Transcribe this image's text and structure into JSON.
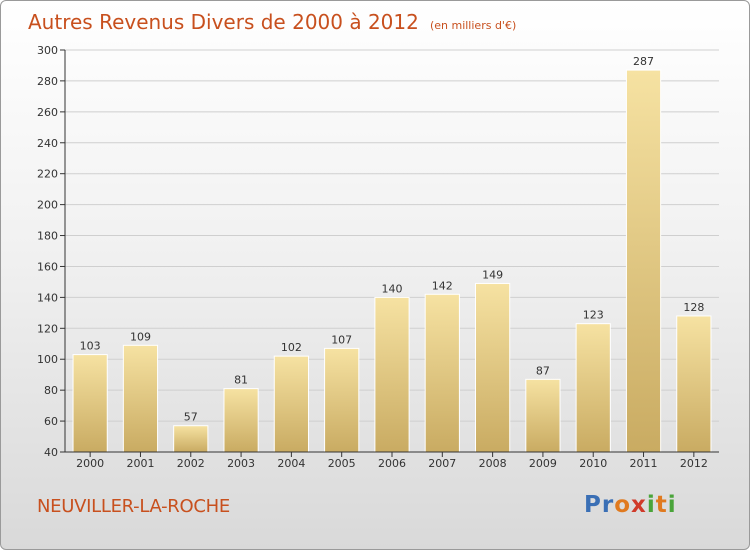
{
  "title": "Autres Revenus Divers de 2000 à 2012",
  "subtitle": "(en milliers d'€)",
  "footer_label": "NEUVILLER-LA-ROCHE",
  "logo": {
    "text": "Proxiti",
    "letters": [
      {
        "ch": "P",
        "color": "#3a6fb5"
      },
      {
        "ch": "r",
        "color": "#3a6fb5"
      },
      {
        "ch": "o",
        "color": "#e07a1f"
      },
      {
        "ch": "x",
        "color": "#d03a2a"
      },
      {
        "ch": "i",
        "color": "#4aa43a"
      },
      {
        "ch": "t",
        "color": "#e07a1f"
      },
      {
        "ch": "i",
        "color": "#4aa43a"
      }
    ]
  },
  "colors": {
    "title": "#c8501e",
    "bar_light": "#f6e2a2",
    "bar_dark": "#c9ab62",
    "axis": "#333333",
    "grid": "#cfcfcf"
  },
  "chart_data": {
    "type": "bar",
    "categories": [
      "2000",
      "2001",
      "2002",
      "2003",
      "2004",
      "2005",
      "2006",
      "2007",
      "2008",
      "2009",
      "2010",
      "2011",
      "2012"
    ],
    "values": [
      103,
      109,
      57,
      81,
      102,
      107,
      140,
      142,
      149,
      87,
      123,
      287,
      128
    ],
    "ylim": [
      40,
      300
    ],
    "yticks": [
      40,
      60,
      80,
      100,
      120,
      140,
      160,
      180,
      200,
      220,
      240,
      260,
      280,
      300
    ],
    "grid": "horizontal",
    "legend": "none"
  }
}
